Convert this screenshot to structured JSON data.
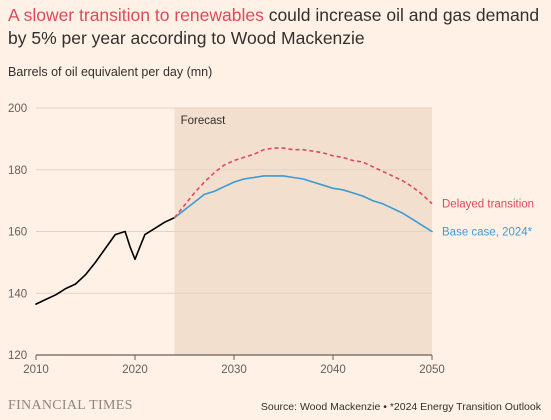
{
  "header": {
    "title_highlight": "A slower transition to renewables",
    "title_rest": " could increase oil and gas demand by 5% per year according to Wood Mackenzie",
    "subtitle": "Barrels of oil equivalent per day (mn)"
  },
  "footer": {
    "brand": "FINANCIAL TIMES",
    "source": "Source: Wood Mackenzie • *2024 Energy Transition Outlook"
  },
  "colors": {
    "background": "#fff1e5",
    "forecast_shade": "#f2dfce",
    "historical": "#000000",
    "base_case": "#3a9bd5",
    "delayed": "#e0495b",
    "title_highlight": "#e0495b"
  },
  "chart_data": {
    "type": "line",
    "title": "A slower transition to renewables could increase oil and gas demand by 5% per year according to Wood Mackenzie",
    "ylabel": "Barrels of oil equivalent per day (mn)",
    "xlim": [
      2010,
      2050
    ],
    "ylim": [
      120,
      200
    ],
    "xticks": [
      2010,
      2020,
      2030,
      2040,
      2050
    ],
    "yticks": [
      120,
      140,
      160,
      180,
      200
    ],
    "grid": "horizontal",
    "forecast_region": {
      "label": "Forecast",
      "start": 2024,
      "end": 2050
    },
    "series": [
      {
        "name": "",
        "style": "solid",
        "color": "#000000",
        "x": [
          2010,
          2011,
          2012,
          2013,
          2014,
          2015,
          2016,
          2017,
          2018,
          2019,
          2019.5,
          2020,
          2020.5,
          2021,
          2022,
          2023,
          2024
        ],
        "y": [
          136.5,
          138,
          139.5,
          141.5,
          143,
          146,
          150,
          154.5,
          159,
          160,
          155,
          151,
          155,
          159,
          161,
          163,
          164.5
        ]
      },
      {
        "name": "Base case, 2024*",
        "style": "solid",
        "color": "#3a9bd5",
        "x": [
          2024,
          2025,
          2026,
          2027,
          2028,
          2029,
          2030,
          2031,
          2032,
          2033,
          2034,
          2035,
          2036,
          2037,
          2038,
          2039,
          2040,
          2041,
          2042,
          2043,
          2044,
          2045,
          2046,
          2047,
          2048,
          2049,
          2050
        ],
        "y": [
          164.5,
          167,
          169.5,
          172,
          173,
          174.5,
          176,
          177,
          177.5,
          178,
          178,
          178,
          177.5,
          177,
          176,
          175,
          174,
          173.5,
          172.5,
          171.5,
          170,
          169,
          167.5,
          166,
          164,
          162,
          160
        ]
      },
      {
        "name": "Delayed transition",
        "style": "dashed",
        "color": "#e0495b",
        "x": [
          2024,
          2025,
          2026,
          2027,
          2028,
          2029,
          2030,
          2031,
          2032,
          2033,
          2034,
          2035,
          2036,
          2037,
          2038,
          2039,
          2040,
          2041,
          2042,
          2043,
          2044,
          2045,
          2046,
          2047,
          2048,
          2049,
          2050
        ],
        "y": [
          164.5,
          168.5,
          172.5,
          176,
          179,
          181.5,
          183,
          184,
          185,
          186.5,
          187,
          187,
          186.5,
          186.5,
          186,
          185.5,
          184.5,
          184,
          183,
          182.5,
          181,
          179.5,
          178,
          176.5,
          174.5,
          172,
          169
        ]
      }
    ]
  }
}
